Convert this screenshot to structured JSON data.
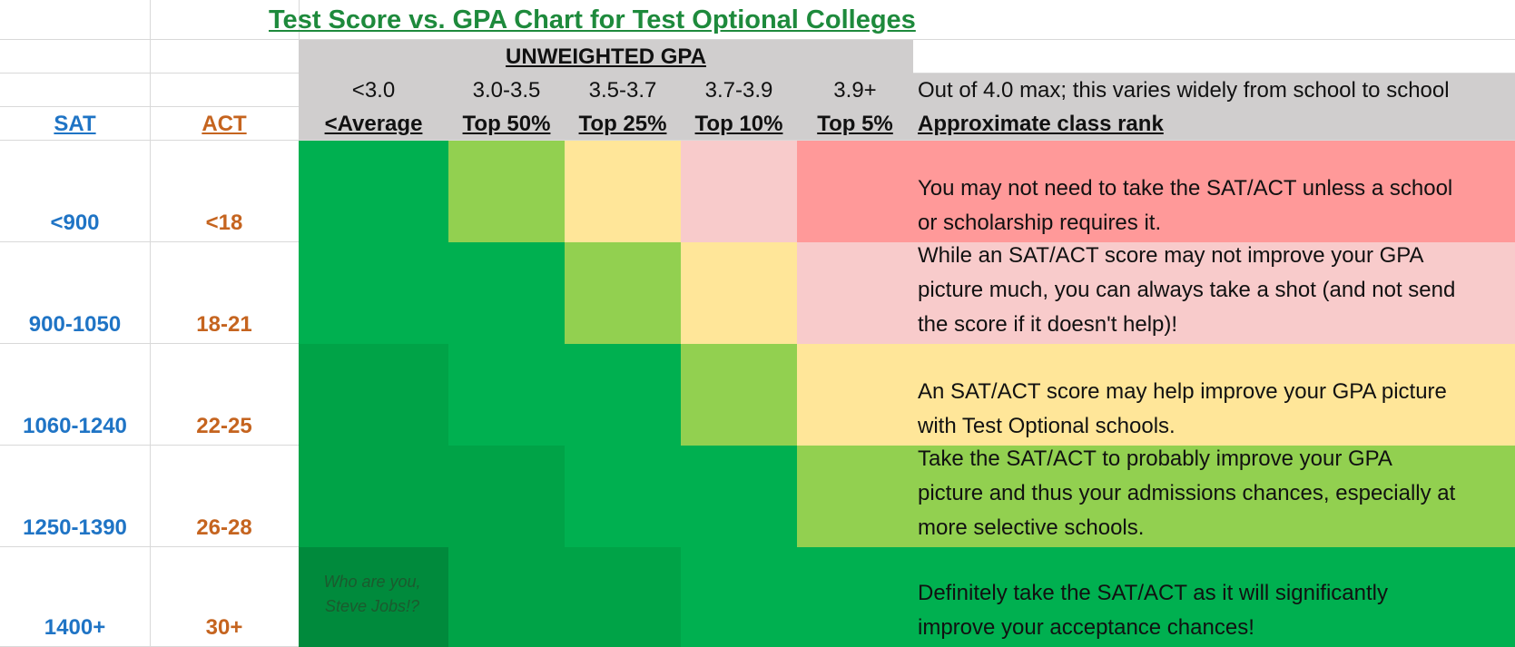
{
  "title": "Test Score vs. GPA Chart for Test Optional Colleges",
  "gpa_header": "UNWEIGHTED GPA",
  "left_headers": {
    "sat": "SAT",
    "act": "ACT"
  },
  "columns": [
    {
      "range": "<3.0",
      "rank": "<Average"
    },
    {
      "range": "3.0-3.5",
      "rank": "Top 50%"
    },
    {
      "range": "3.5-3.7",
      "rank": "Top 25%"
    },
    {
      "range": "3.7-3.9",
      "rank": "Top 10%"
    },
    {
      "range": "3.9+",
      "rank": "Top 5%"
    }
  ],
  "notes": {
    "gpa_note": "Out of 4.0 max; this varies widely from school to school",
    "rank_note": "Approximate class rank"
  },
  "rows": [
    {
      "sat": "<900",
      "act": "<18",
      "colors": [
        "#00b050",
        "#92d050",
        "#ffe699",
        "#f8cbcb",
        "#ff9999"
      ],
      "desc_bg": "#ff9999",
      "desc_lines": [
        "You may not need to take the SAT/ACT unless a school",
        "or scholarship requires it."
      ]
    },
    {
      "sat": "900-1050",
      "act": "18-21",
      "colors": [
        "#00b050",
        "#00b050",
        "#92d050",
        "#ffe699",
        "#f8cbcb"
      ],
      "desc_bg": "#f8cbcb",
      "desc_lines": [
        "While an SAT/ACT score may not improve your GPA",
        "picture much, you can always take a shot (and not send",
        "the score if it doesn't help)!"
      ]
    },
    {
      "sat": "1060-1240",
      "act": "22-25",
      "colors": [
        "#00a347",
        "#00b050",
        "#00b050",
        "#92d050",
        "#ffe699"
      ],
      "desc_bg": "#ffe699",
      "desc_lines": [
        "An SAT/ACT score may help improve your GPA picture",
        "with Test Optional schools."
      ]
    },
    {
      "sat": "1250-1390",
      "act": "26-28",
      "colors": [
        "#00a347",
        "#00a347",
        "#00b050",
        "#00b050",
        "#92d050"
      ],
      "desc_bg": "#92d050",
      "desc_lines": [
        "Take the SAT/ACT to probably improve your GPA",
        "picture and thus your admissions chances, especially at",
        "more selective schools."
      ]
    },
    {
      "sat": "1400+",
      "act": "30+",
      "colors": [
        "#008a3c",
        "#00a347",
        "#00a347",
        "#00b050",
        "#00b050"
      ],
      "desc_bg": "#00b050",
      "desc_lines": [
        "Definitely take the SAT/ACT as it will significantly",
        "improve your acceptance chances!"
      ]
    }
  ],
  "easter_egg": [
    "Who are you,",
    "Steve Jobs!?"
  ]
}
